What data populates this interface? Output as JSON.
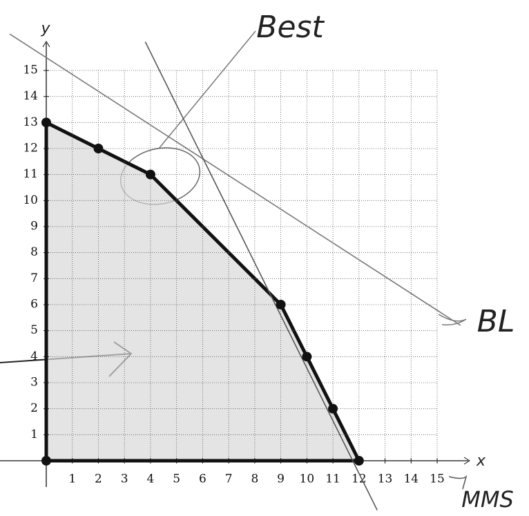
{
  "chart_data": {
    "type": "region",
    "xlabel": "x",
    "ylabel": "y",
    "xlim": [
      0,
      15
    ],
    "ylim": [
      0,
      15
    ],
    "xticks": [
      1,
      2,
      3,
      4,
      5,
      6,
      7,
      8,
      9,
      10,
      11,
      12,
      13,
      14,
      15
    ],
    "yticks": [
      1,
      2,
      3,
      4,
      5,
      6,
      7,
      8,
      9,
      10,
      11,
      12,
      13,
      14,
      15
    ],
    "grid": true,
    "region": {
      "x": [
        0,
        0,
        4,
        9,
        12
      ],
      "y": [
        0,
        13,
        11,
        6,
        0
      ],
      "color": "#d9d9d9"
    },
    "points": {
      "x": [
        0,
        0,
        2,
        4,
        9,
        10,
        11,
        12
      ],
      "y": [
        0,
        13,
        12,
        11,
        6,
        4,
        2,
        0
      ],
      "color": "#111111"
    },
    "series": [
      {
        "name": "BL",
        "color": "#777777",
        "x": [
          -1.4,
          15.9
        ],
        "values": [
          16.4,
          5.2
        ]
      },
      {
        "name": "MMS",
        "color": "#555555",
        "x": [
          3.8,
          12.7
        ],
        "values": [
          16.1,
          -1.9
        ]
      }
    ],
    "annotations": [
      "Best"
    ]
  }
}
